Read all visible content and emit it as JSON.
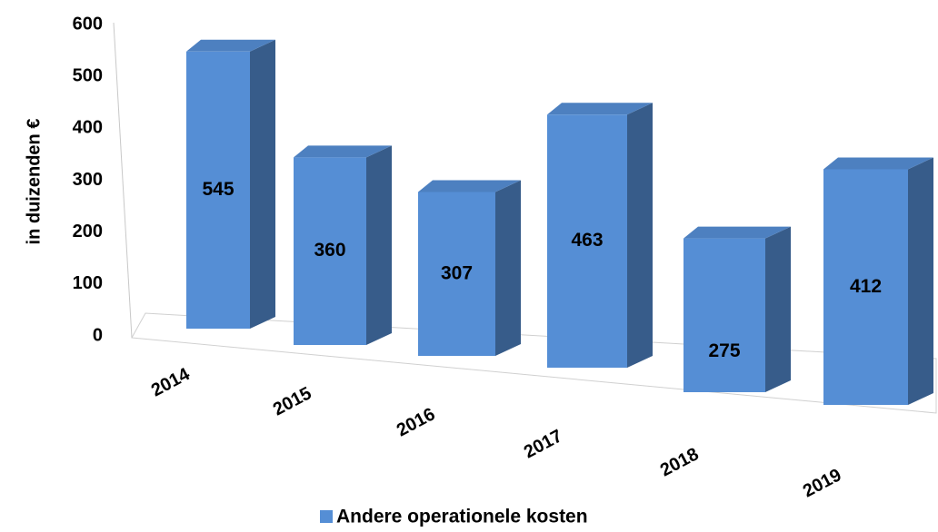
{
  "chart_data": {
    "type": "bar3d",
    "y_label": "in duizenden €",
    "categories": [
      "2014",
      "2015",
      "2016",
      "2017",
      "2018",
      "2019"
    ],
    "series": [
      {
        "name": "Andere operationele kosten",
        "color": "#558ed5",
        "values": [
          545,
          360,
          307,
          463,
          275,
          412
        ]
      }
    ],
    "ylim": [
      0,
      600
    ],
    "yticks": [
      0,
      100,
      200,
      300,
      400,
      500,
      600
    ],
    "grid": false,
    "legend": "bottom"
  }
}
